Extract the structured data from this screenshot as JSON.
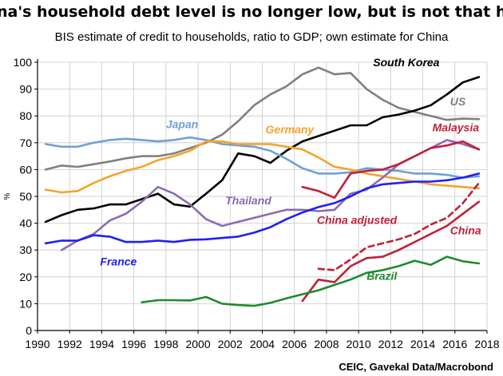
{
  "chart_data": {
    "type": "line",
    "title": "China's household debt level is no longer low, but is not that high",
    "subtitle": "BIS estimate of credit to households, ratio to GDP; own estimate for China",
    "ylabel": "%",
    "source": "CEIC, Gavekal Data/Macrobond",
    "xlim": [
      1990,
      2018
    ],
    "ylim": [
      0,
      100
    ],
    "x_ticks": [
      "1990",
      "1992",
      "1994",
      "1996",
      "1998",
      "2000",
      "2002",
      "2004",
      "2006",
      "2008",
      "2010",
      "2012",
      "2014",
      "2016",
      "2018"
    ],
    "y_ticks": [
      "0",
      "10",
      "20",
      "30",
      "40",
      "50",
      "60",
      "70",
      "80",
      "90",
      "100"
    ],
    "grid": true,
    "series": [
      {
        "name": "US",
        "color": "#808080",
        "points": [
          [
            1990.5,
            60
          ],
          [
            1991.5,
            61.5
          ],
          [
            1992.5,
            61
          ],
          [
            1993.5,
            62
          ],
          [
            1994.5,
            63
          ],
          [
            1995.5,
            64.2
          ],
          [
            1996.5,
            65
          ],
          [
            1997.5,
            65
          ],
          [
            1998.5,
            66
          ],
          [
            1999.5,
            68
          ],
          [
            2000.5,
            70
          ],
          [
            2001.5,
            73
          ],
          [
            2002.5,
            78
          ],
          [
            2003.5,
            84
          ],
          [
            2004.5,
            88
          ],
          [
            2005.5,
            91
          ],
          [
            2006.5,
            95.5
          ],
          [
            2007.5,
            98
          ],
          [
            2008.5,
            95.5
          ],
          [
            2009.5,
            96
          ],
          [
            2010.5,
            90
          ],
          [
            2011.5,
            86
          ],
          [
            2012.5,
            83
          ],
          [
            2013.5,
            81.5
          ],
          [
            2014.5,
            80
          ],
          [
            2015.5,
            78.5
          ],
          [
            2016.5,
            79
          ],
          [
            2017.5,
            78.8
          ]
        ]
      },
      {
        "name": "South Korea",
        "color": "#000000",
        "points": [
          [
            1990.5,
            40.5
          ],
          [
            1991.5,
            43
          ],
          [
            1992.5,
            45
          ],
          [
            1993.5,
            45.5
          ],
          [
            1994.5,
            47
          ],
          [
            1995.5,
            47
          ],
          [
            1996.5,
            49
          ],
          [
            1997.5,
            51
          ],
          [
            1998.5,
            47
          ],
          [
            1999.5,
            46.2
          ],
          [
            2000.5,
            51
          ],
          [
            2001.5,
            56
          ],
          [
            2002.5,
            66
          ],
          [
            2003.5,
            65
          ],
          [
            2004.5,
            62.5
          ],
          [
            2005.5,
            67
          ],
          [
            2006.5,
            70.5
          ],
          [
            2007.5,
            72.5
          ],
          [
            2008.5,
            74.5
          ],
          [
            2009.5,
            76.5
          ],
          [
            2010.5,
            76.5
          ],
          [
            2011.5,
            79.5
          ],
          [
            2012.5,
            80.5
          ],
          [
            2013.5,
            82
          ],
          [
            2014.5,
            84
          ],
          [
            2015.5,
            88
          ],
          [
            2016.5,
            92.5
          ],
          [
            2017.5,
            94.5
          ]
        ]
      },
      {
        "name": "Japan",
        "color": "#6fa0d8",
        "points": [
          [
            1990.5,
            69.5
          ],
          [
            1991.5,
            68.5
          ],
          [
            1992.5,
            68.5
          ],
          [
            1993.5,
            70
          ],
          [
            1994.5,
            71
          ],
          [
            1995.5,
            71.5
          ],
          [
            1996.5,
            71
          ],
          [
            1997.5,
            70.5
          ],
          [
            1998.5,
            71
          ],
          [
            1999.5,
            72
          ],
          [
            2000.5,
            71
          ],
          [
            2001.5,
            69.5
          ],
          [
            2002.5,
            69
          ],
          [
            2003.5,
            68.5
          ],
          [
            2004.5,
            67
          ],
          [
            2005.5,
            64
          ],
          [
            2006.5,
            60.5
          ],
          [
            2007.5,
            58.5
          ],
          [
            2008.5,
            58.5
          ],
          [
            2009.5,
            59
          ],
          [
            2010.5,
            60.5
          ],
          [
            2011.5,
            60
          ],
          [
            2012.5,
            59.5
          ],
          [
            2013.5,
            58.5
          ],
          [
            2014.5,
            58.5
          ],
          [
            2015.5,
            58
          ],
          [
            2016.5,
            57
          ],
          [
            2017.5,
            57.5
          ]
        ]
      },
      {
        "name": "Germany",
        "color": "#f4a42a",
        "points": [
          [
            1990.5,
            52.5
          ],
          [
            1991.5,
            51.5
          ],
          [
            1992.5,
            52
          ],
          [
            1993.5,
            55
          ],
          [
            1994.5,
            57.5
          ],
          [
            1995.5,
            59.5
          ],
          [
            1996.5,
            61
          ],
          [
            1997.5,
            63.5
          ],
          [
            1998.5,
            65
          ],
          [
            1999.5,
            67
          ],
          [
            2000.5,
            70.5
          ],
          [
            2001.5,
            70.5
          ],
          [
            2002.5,
            69.5
          ],
          [
            2003.5,
            69.5
          ],
          [
            2004.5,
            69.5
          ],
          [
            2005.5,
            68.5
          ],
          [
            2006.5,
            67.5
          ],
          [
            2007.5,
            64.5
          ],
          [
            2008.5,
            61
          ],
          [
            2009.5,
            60
          ],
          [
            2010.5,
            58.5
          ],
          [
            2011.5,
            57.5
          ],
          [
            2012.5,
            56.5
          ],
          [
            2013.5,
            55.5
          ],
          [
            2014.5,
            54.5
          ],
          [
            2015.5,
            54
          ],
          [
            2016.5,
            53.5
          ],
          [
            2017.5,
            53
          ]
        ]
      },
      {
        "name": "Thailand",
        "color": "#8c6bb1",
        "points": [
          [
            1991.5,
            30
          ],
          [
            1992.5,
            33.5
          ],
          [
            1993.5,
            36
          ],
          [
            1994.5,
            41
          ],
          [
            1995.5,
            43.5
          ],
          [
            1996.5,
            48
          ],
          [
            1997.5,
            53.5
          ],
          [
            1998.5,
            51
          ],
          [
            1999.5,
            47
          ],
          [
            2000.5,
            41.5
          ],
          [
            2001.5,
            39
          ],
          [
            2002.5,
            40.5
          ],
          [
            2003.5,
            42
          ],
          [
            2004.5,
            43.5
          ],
          [
            2005.5,
            45
          ],
          [
            2006.5,
            45
          ],
          [
            2007.5,
            44.5
          ],
          [
            2008.5,
            45
          ],
          [
            2009.5,
            51
          ],
          [
            2010.5,
            52.5
          ],
          [
            2011.5,
            57
          ],
          [
            2012.5,
            62
          ],
          [
            2013.5,
            65
          ],
          [
            2014.5,
            68
          ],
          [
            2015.5,
            71
          ],
          [
            2016.5,
            69.5
          ],
          [
            2017.5,
            67.5
          ]
        ]
      },
      {
        "name": "Malaysia",
        "color": "#c0203a",
        "points": [
          [
            2006.5,
            53.5
          ],
          [
            2007.5,
            52
          ],
          [
            2008.5,
            49.5
          ],
          [
            2009.5,
            58.5
          ],
          [
            2010.5,
            59.5
          ],
          [
            2011.5,
            60
          ],
          [
            2012.5,
            62
          ],
          [
            2013.5,
            65
          ],
          [
            2014.5,
            68
          ],
          [
            2015.5,
            69
          ],
          [
            2016.5,
            70.5
          ],
          [
            2017.5,
            67.5
          ]
        ]
      },
      {
        "name": "France",
        "color": "#1f1ff5",
        "points": [
          [
            1990.5,
            32.5
          ],
          [
            1991.5,
            33.5
          ],
          [
            1992.5,
            33.5
          ],
          [
            1993.5,
            35.5
          ],
          [
            1994.5,
            35
          ],
          [
            1995.5,
            33
          ],
          [
            1996.5,
            33
          ],
          [
            1997.5,
            33.5
          ],
          [
            1998.5,
            33
          ],
          [
            1999.5,
            33.8
          ],
          [
            2000.5,
            34
          ],
          [
            2001.5,
            34.5
          ],
          [
            2002.5,
            35
          ],
          [
            2003.5,
            36.5
          ],
          [
            2004.5,
            38.5
          ],
          [
            2005.5,
            41.5
          ],
          [
            2006.5,
            44
          ],
          [
            2007.5,
            46
          ],
          [
            2008.5,
            47.5
          ],
          [
            2009.5,
            50
          ],
          [
            2010.5,
            53
          ],
          [
            2011.5,
            54.5
          ],
          [
            2012.5,
            55
          ],
          [
            2013.5,
            55.5
          ],
          [
            2014.5,
            55.5
          ],
          [
            2015.5,
            56
          ],
          [
            2016.5,
            57
          ],
          [
            2017.5,
            58.5
          ]
        ]
      },
      {
        "name": "China adjusted",
        "color": "#c0203a",
        "dashed": true,
        "points": [
          [
            2007.5,
            23
          ],
          [
            2008.5,
            22.5
          ],
          [
            2009.5,
            26.5
          ],
          [
            2010.5,
            31
          ],
          [
            2011.5,
            32.5
          ],
          [
            2012.5,
            34
          ],
          [
            2013.5,
            36
          ],
          [
            2014.5,
            39.5
          ],
          [
            2015.5,
            42
          ],
          [
            2016.5,
            47.5
          ],
          [
            2017.5,
            55
          ]
        ]
      },
      {
        "name": "China",
        "color": "#c0203a",
        "points": [
          [
            2006.5,
            11
          ],
          [
            2007.5,
            19
          ],
          [
            2008.5,
            18
          ],
          [
            2009.5,
            24
          ],
          [
            2010.5,
            27
          ],
          [
            2011.5,
            27.5
          ],
          [
            2012.5,
            30
          ],
          [
            2013.5,
            33
          ],
          [
            2014.5,
            36
          ],
          [
            2015.5,
            39
          ],
          [
            2016.5,
            43.5
          ],
          [
            2017.5,
            48
          ]
        ]
      },
      {
        "name": "Brazil",
        "color": "#1e8b2d",
        "points": [
          [
            1996.5,
            10.5
          ],
          [
            1997.5,
            11.3
          ],
          [
            1998.5,
            11.3
          ],
          [
            1999.5,
            11.2
          ],
          [
            2000.5,
            12.5
          ],
          [
            2001.5,
            10
          ],
          [
            2002.5,
            9.5
          ],
          [
            2003.5,
            9.2
          ],
          [
            2004.5,
            10.3
          ],
          [
            2005.5,
            12
          ],
          [
            2006.5,
            13.5
          ],
          [
            2007.5,
            15
          ],
          [
            2008.5,
            17
          ],
          [
            2009.5,
            19
          ],
          [
            2010.5,
            21.5
          ],
          [
            2011.5,
            22.5
          ],
          [
            2012.5,
            24
          ],
          [
            2013.5,
            26
          ],
          [
            2014.5,
            24.5
          ],
          [
            2015.5,
            27.5
          ],
          [
            2016.5,
            25.8
          ],
          [
            2017.5,
            25
          ]
        ]
      }
    ],
    "labels": [
      {
        "text": "South Korea",
        "series": "South Korea",
        "x": 2010.9,
        "y": 98.5,
        "color": "#000000"
      },
      {
        "text": "US",
        "series": "US",
        "x": 2015.7,
        "y": 84,
        "color": "#808080"
      },
      {
        "text": "Malaysia",
        "series": "Malaysia",
        "x": 2014.6,
        "y": 74.3,
        "color": "#c0203a"
      },
      {
        "text": "Japan",
        "series": "Japan",
        "x": 1998.0,
        "y": 75.5,
        "color": "#6fa0d8"
      },
      {
        "text": "Germany",
        "series": "Germany",
        "x": 2004.2,
        "y": 73.5,
        "color": "#f4a42a"
      },
      {
        "text": "Thailand",
        "series": "Thailand",
        "x": 2001.7,
        "y": 47,
        "color": "#8c6bb1"
      },
      {
        "text": "China adjusted",
        "series": "China adjusted",
        "x": 2007.4,
        "y": 39.7,
        "color": "#c0203a"
      },
      {
        "text": "China",
        "series": "China",
        "x": 2015.7,
        "y": 35.8,
        "color": "#c0203a"
      },
      {
        "text": "France",
        "series": "France",
        "x": 1993.9,
        "y": 24.2,
        "color": "#1f1ff5"
      },
      {
        "text": "Brazil",
        "series": "Brazil",
        "x": 2010.5,
        "y": 18.9,
        "color": "#1e8b2d"
      }
    ]
  }
}
